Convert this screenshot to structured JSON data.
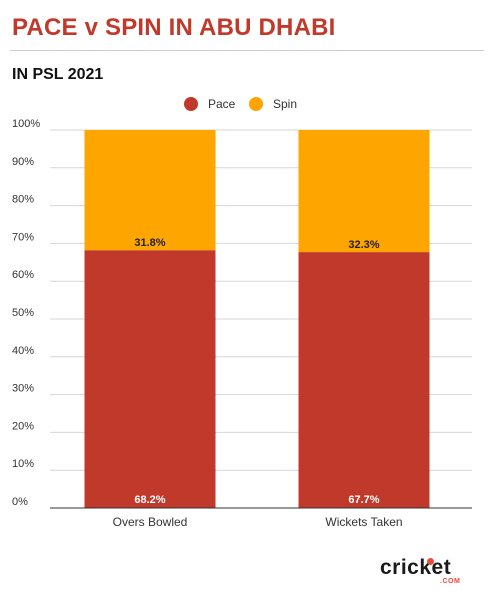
{
  "header": {
    "title": "PACE v SPIN IN ABU DHABI",
    "subtitle": "IN PSL 2021"
  },
  "colors": {
    "title": "#c0392b",
    "pace": "#c0392b",
    "spin": "#ffa500",
    "grid": "#d6d6d6",
    "axis": "#333333",
    "logo_accent": "#e74c3c"
  },
  "logo": {
    "brand": "cricket",
    "domain": ".COM"
  },
  "chart_data": {
    "type": "bar",
    "stacked": true,
    "normalized": true,
    "categories": [
      "Overs Bowled",
      "Wickets Taken"
    ],
    "series": [
      {
        "name": "Pace",
        "values": [
          68.2,
          67.7
        ],
        "labels": [
          "68.2%",
          "67.7%"
        ]
      },
      {
        "name": "Spin",
        "values": [
          31.8,
          32.3
        ],
        "labels": [
          "31.8%",
          "32.3%"
        ]
      }
    ],
    "yticks": [
      "0%",
      "10%",
      "20%",
      "30%",
      "40%",
      "50%",
      "60%",
      "70%",
      "80%",
      "90%",
      "100%"
    ],
    "ylim": [
      0,
      100
    ],
    "grid": true,
    "legend": "top-center"
  }
}
